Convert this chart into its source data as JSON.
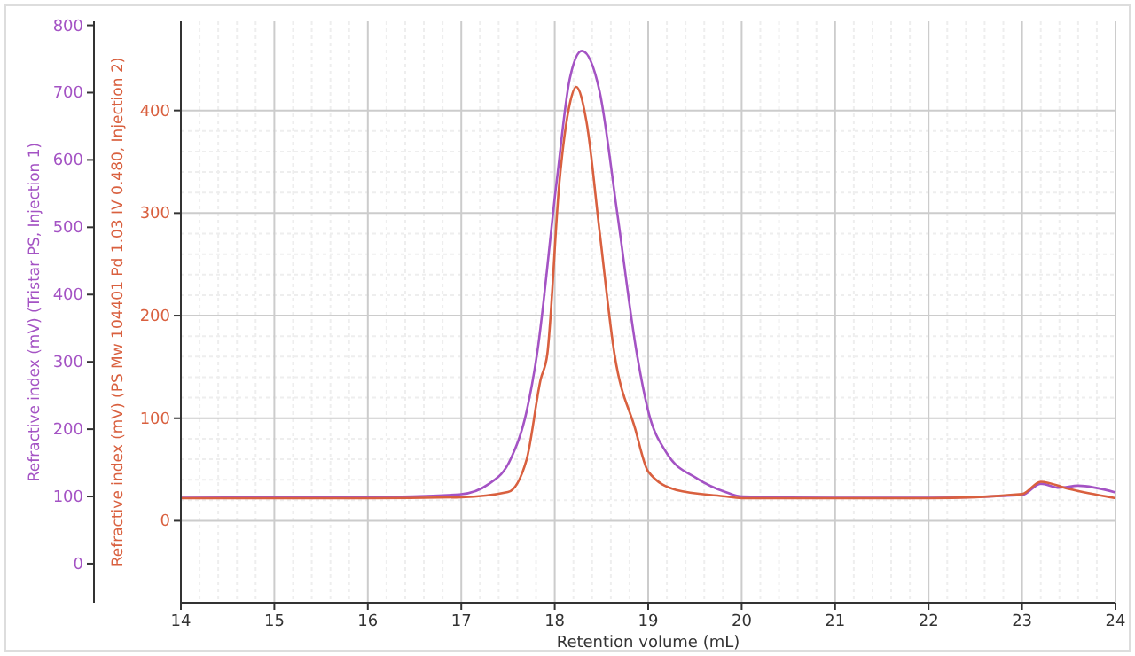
{
  "chart_data": {
    "type": "line",
    "xlabel": "Retention volume (mL)",
    "ylabel": "Refractive index (mV) (PS Mw 104401 Pd 1.03 IV 0.480, Injection 2)",
    "y2label": "Refractive index (mV) (Tristar PS, Injection 1)",
    "xlim": [
      14,
      24
    ],
    "xticks": [
      14,
      15,
      16,
      17,
      18,
      19,
      20,
      21,
      22,
      23,
      24
    ],
    "ylim": [
      -80,
      487
    ],
    "yticks": [
      0,
      100,
      200,
      300,
      400
    ],
    "y2lim": [
      -58,
      806
    ],
    "y2ticks": [
      0,
      100,
      200,
      300,
      400,
      500,
      600,
      700,
      800
    ],
    "grid": true,
    "line_style": "solid",
    "series": [
      {
        "axis": "y2",
        "color": "#a453c4",
        "x": [
          14,
          16,
          16.98,
          17.3,
          17.53,
          17.7,
          17.81,
          18.02,
          18.16,
          18.29,
          18.48,
          18.67,
          18.88,
          19.0,
          19.2,
          19.52,
          19.84,
          20.0,
          21,
          22,
          23,
          23.2,
          23.4,
          23.6,
          24
        ],
        "values": [
          98,
          99,
          103,
          119,
          156,
          227,
          311,
          567,
          720,
          762,
          702,
          520,
          311,
          227,
          164,
          127,
          106,
          100,
          98,
          98,
          102,
          119,
          113,
          116,
          106
        ]
      },
      {
        "axis": "y",
        "color": "#d9603f",
        "x": [
          14,
          16,
          17,
          17.5,
          17.7,
          17.85,
          17.92,
          18.05,
          18.16,
          18.23,
          18.34,
          18.48,
          18.64,
          18.86,
          19.0,
          19.3,
          19.8,
          20.0,
          21,
          22,
          23,
          23.2,
          23.5,
          24
        ],
        "values": [
          22,
          22,
          23,
          28,
          60,
          138,
          162,
          330,
          406,
          423,
          389,
          282,
          162,
          90,
          48,
          30,
          24,
          22,
          22,
          22,
          26,
          38,
          31,
          22
        ]
      }
    ]
  }
}
